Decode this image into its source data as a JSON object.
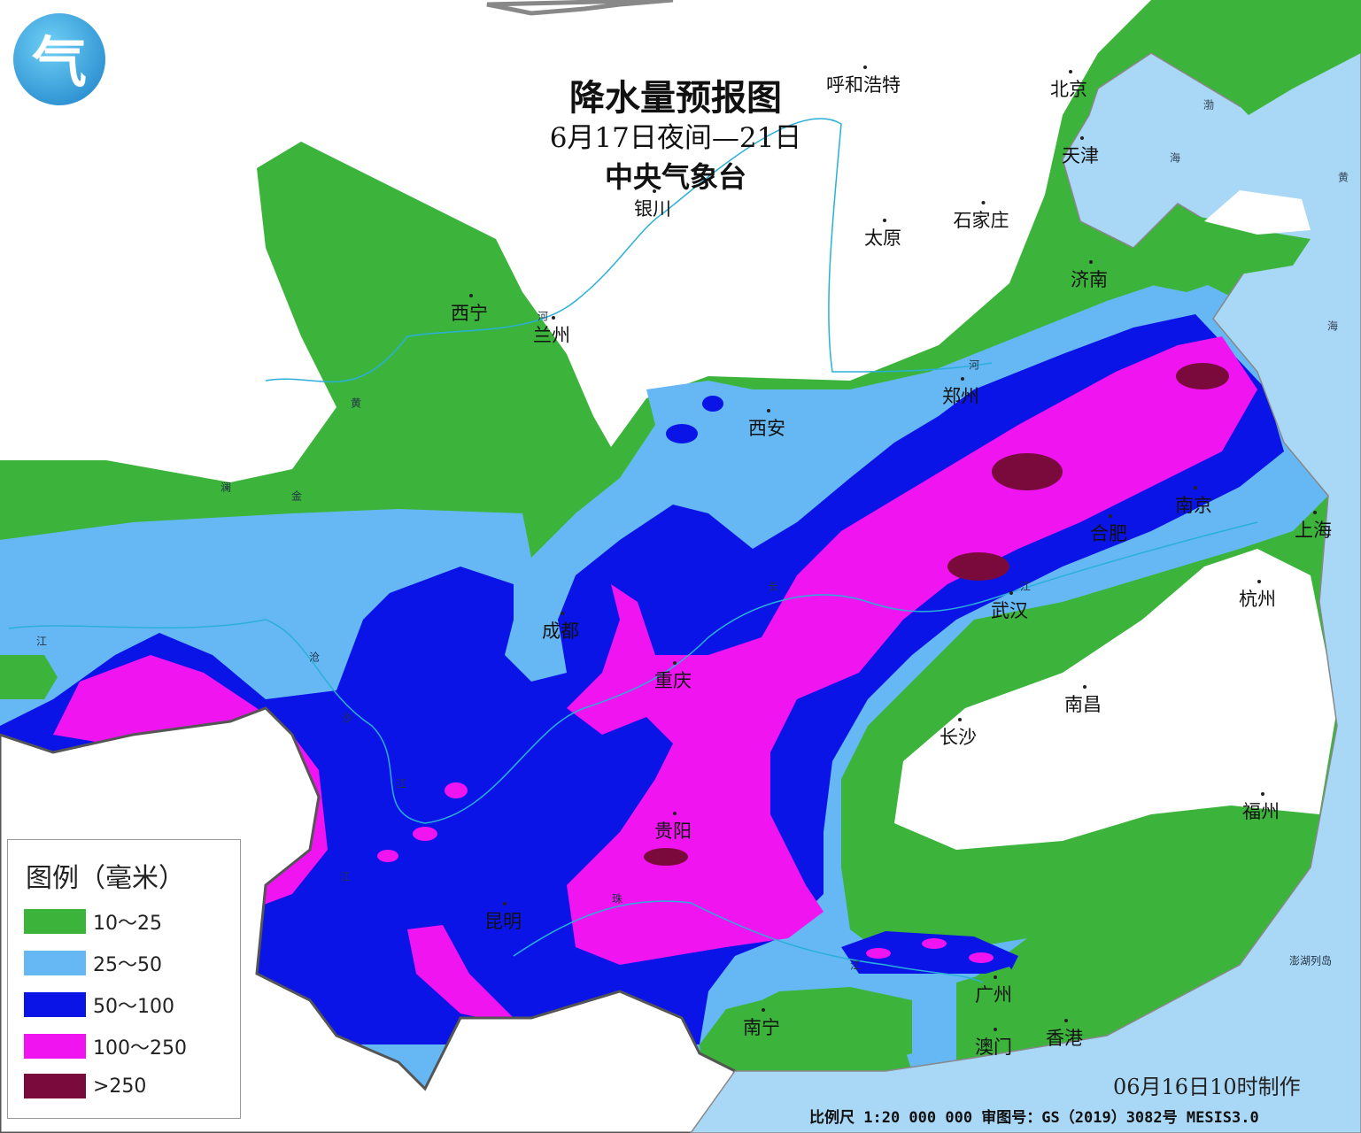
{
  "title": "降水量预报图",
  "period": "6月17日夜间—21日",
  "issuer": "中央气象台",
  "logo_text": "气",
  "legend": {
    "title": "图例（毫米）",
    "items": [
      {
        "label": "10～25",
        "color": "#3cb43c"
      },
      {
        "label": "25～50",
        "color": "#66b8f5"
      },
      {
        "label": "50～100",
        "color": "#0a14e6"
      },
      {
        "label": "100～250",
        "color": "#f014f0"
      },
      {
        "label": ">250",
        "color": "#7a0a3c"
      }
    ]
  },
  "colors": {
    "sea": "#a9d7f6",
    "land": "#ffffff"
  },
  "cities": [
    "西宁",
    "兰州",
    "银川",
    "呼和浩特",
    "北京",
    "天津",
    "石家庄",
    "太原",
    "济南",
    "郑州",
    "西安",
    "南京",
    "合肥",
    "上海",
    "成都",
    "武汉",
    "杭州",
    "重庆",
    "南昌",
    "长沙",
    "福州",
    "贵阳",
    "昆明",
    "广州",
    "南宁",
    "澳门",
    "香港",
    "澎湖列岛"
  ],
  "rivers": [
    "河",
    "黄",
    "澜",
    "金",
    "江",
    "沧",
    "沙",
    "江",
    "江",
    "长",
    "江",
    "珠",
    "江",
    "河"
  ],
  "seas": [
    "渤",
    "海",
    "黄",
    "海"
  ],
  "footer": {
    "made": "06月16日10时制作",
    "scale": "比例尺 1:20 000 000  审图号：GS（2019）3082号 MESIS3.0"
  }
}
